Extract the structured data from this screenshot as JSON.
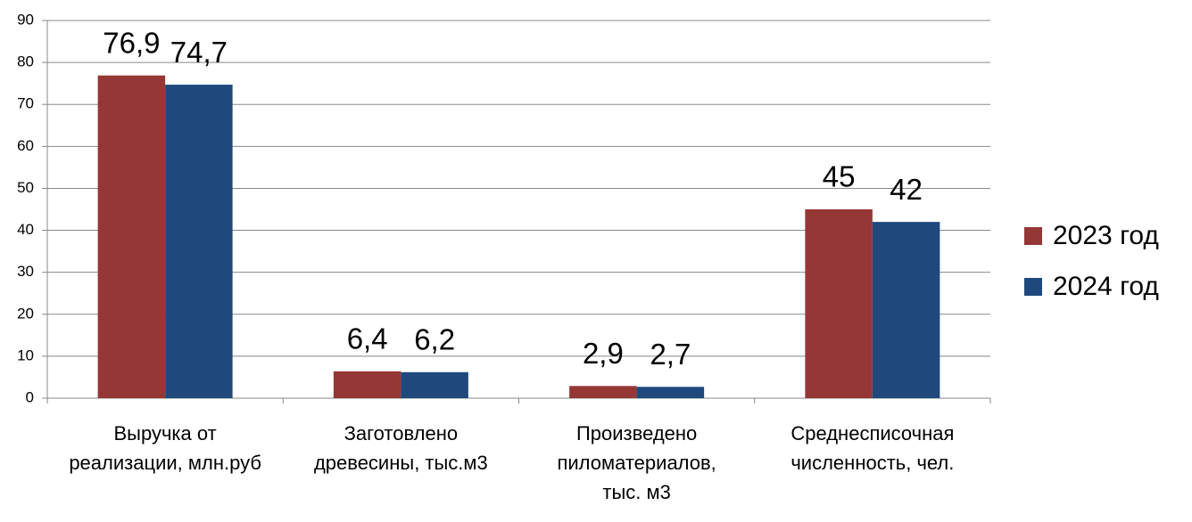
{
  "chart_data": {
    "type": "bar",
    "categories": [
      [
        "Выручка от",
        "реализации, млн.руб"
      ],
      [
        "Заготовлено",
        "древесины, тыс.м3"
      ],
      [
        "Произведено",
        "пиломатериалов,",
        "тыс. м3"
      ],
      [
        "Среднесписочная",
        "численность, чел."
      ]
    ],
    "series": [
      {
        "name": "2023 год",
        "color": "#953735",
        "values": [
          76.9,
          6.4,
          2.9,
          45
        ],
        "value_labels": [
          "76,9",
          "6,4",
          "2,9",
          "45"
        ]
      },
      {
        "name": "2024 год",
        "color": "#1f497d",
        "values": [
          74.7,
          6.2,
          2.7,
          42
        ],
        "value_labels": [
          "74,7",
          "6,2",
          "2,7",
          "42"
        ]
      }
    ],
    "ylim": [
      0,
      90
    ],
    "yticks": [
      0,
      10,
      20,
      30,
      40,
      50,
      60,
      70,
      80,
      90
    ],
    "grid": true,
    "legend": "right"
  }
}
